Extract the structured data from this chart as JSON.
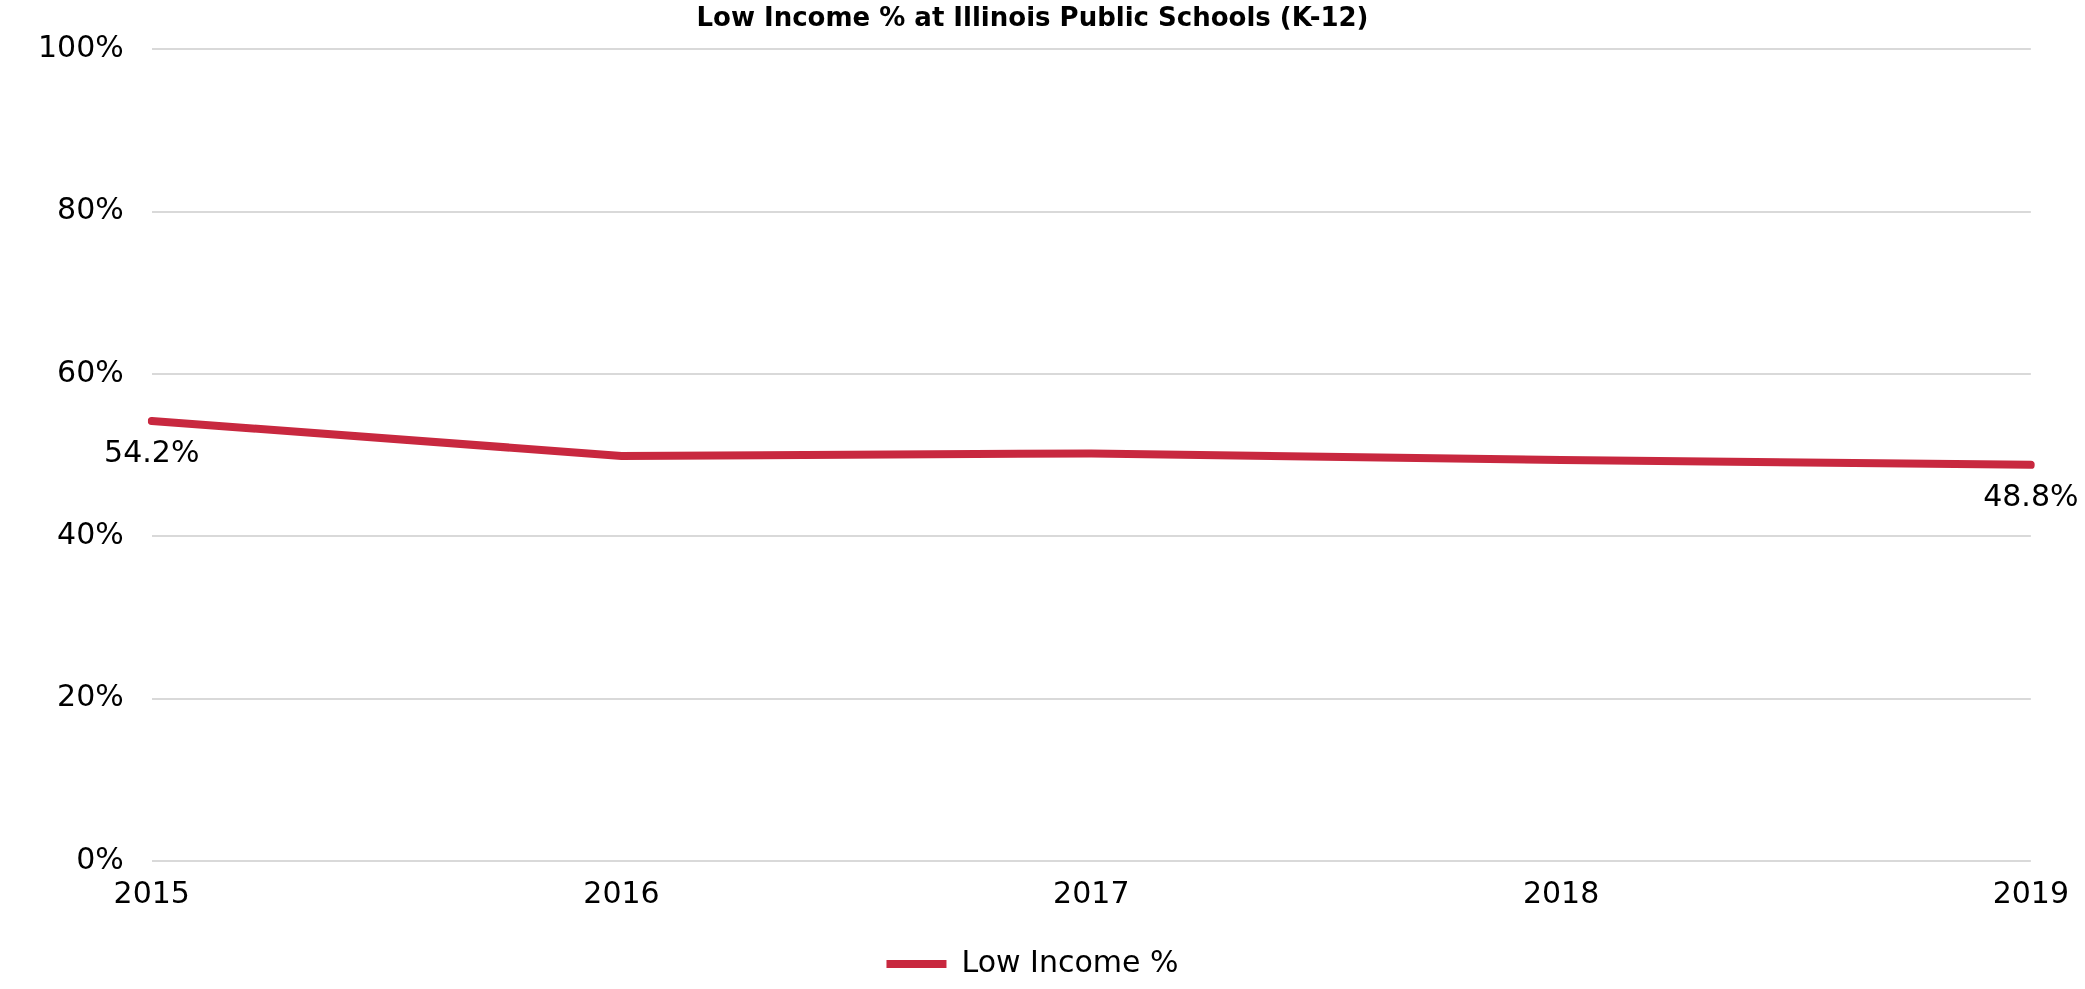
{
  "chart_data": {
    "type": "line",
    "title": "Low Income % at Illinois Public Schools (K-12)",
    "categories": [
      "2015",
      "2016",
      "2017",
      "2018",
      "2019"
    ],
    "series": [
      {
        "name": "Low Income %",
        "color": "#c8283f",
        "values": [
          54.2,
          49.9,
          50.2,
          49.4,
          48.8
        ],
        "value_labels": [
          "54.2%",
          null,
          null,
          null,
          "48.8%"
        ]
      }
    ],
    "ylim": [
      0,
      100
    ],
    "yticks": [
      {
        "value": 0,
        "label": "0%"
      },
      {
        "value": 20,
        "label": "20%"
      },
      {
        "value": 40,
        "label": "40%"
      },
      {
        "value": 60,
        "label": "60%"
      },
      {
        "value": 80,
        "label": "80%"
      },
      {
        "value": 100,
        "label": "100%"
      }
    ],
    "grid": "y",
    "legend": "bottom",
    "marker": "none",
    "line_style": "solid"
  }
}
